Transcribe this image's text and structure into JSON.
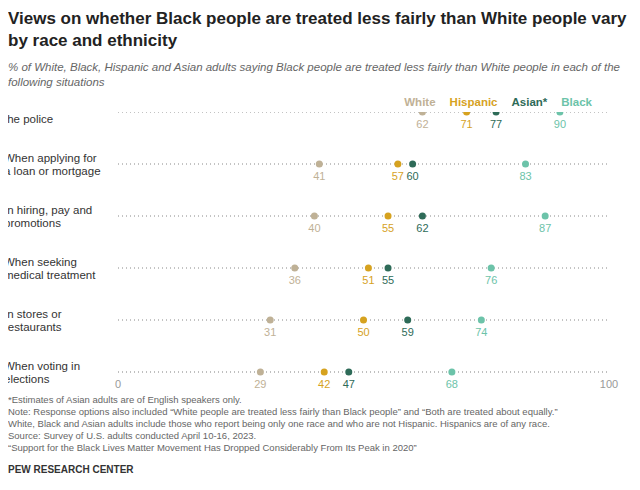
{
  "chart_data": {
    "type": "dot",
    "title": "Views on whether Black people are treated less fairly than White people vary by race and ethnicity",
    "subtitle": "% of White, Black, Hispanic and Asian adults saying Black people are treated less fairly than White people in each of the following situations",
    "categories": [
      "In dealing with the police",
      "When applying for a loan or mortgage",
      "In hiring, pay and promotions",
      "When seeking medical treatment",
      "In stores or restaurants",
      "When voting in elections"
    ],
    "series": [
      {
        "name": "White",
        "color": "#bfb196",
        "values": [
          62,
          41,
          40,
          36,
          31,
          29
        ]
      },
      {
        "name": "Hispanic",
        "color": "#d6a21f",
        "values": [
          71,
          57,
          55,
          51,
          50,
          42
        ]
      },
      {
        "name": "Asian*",
        "color": "#2e6b58",
        "values": [
          77,
          60,
          62,
          55,
          59,
          47
        ]
      },
      {
        "name": "Black",
        "color": "#6cc3a9",
        "values": [
          90,
          83,
          87,
          76,
          74,
          68
        ]
      }
    ],
    "xlim": [
      0,
      100
    ],
    "xticks": [
      0,
      100
    ],
    "orientation": "horizontal",
    "grid": true,
    "data_labels": true,
    "notes": [
      "*Estimates of Asian adults are of English speakers only.",
      "Note: Response options also included “White people are treated less fairly than Black people” and “Both are treated about equally.”",
      "White, Black and Asian adults include those who report being only one race and who are not Hispanic. Hispanics are of any race.",
      "Source: Survey of U.S. adults conducted April 10-16, 2023.",
      "“Support for the Black Lives Matter Movement Has Dropped Considerably From Its Peak in 2020”"
    ],
    "footer": "PEW RESEARCH CENTER"
  }
}
